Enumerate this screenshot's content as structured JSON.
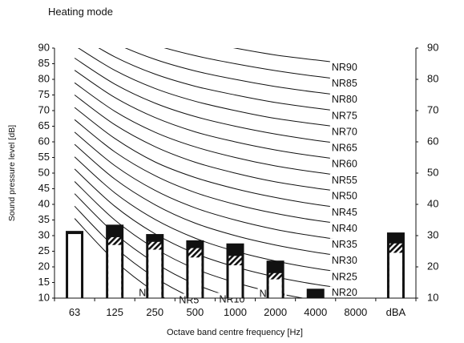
{
  "heading": "Heating mode",
  "chart_data": {
    "type": "bar",
    "title": "",
    "xlabel": "Octave band centre frequency [Hz]",
    "ylabel": "Sound pressure level [dB]",
    "ylim": [
      10,
      90
    ],
    "y_ticks": [
      "10",
      "15",
      "20",
      "25",
      "30",
      "35",
      "40",
      "45",
      "50",
      "55",
      "60",
      "65",
      "70",
      "75",
      "80",
      "85",
      "90"
    ],
    "y_ticks_right": [
      "10",
      "20",
      "30",
      "40",
      "50",
      "60",
      "70",
      "80",
      "90"
    ],
    "categories": [
      "63",
      "125",
      "250",
      "500",
      "1000",
      "2000",
      "4000",
      "8000",
      "dBA"
    ],
    "series": [
      {
        "values": [
          30.5,
          27.0,
          25.5,
          23.0,
          20.5,
          16.0,
          null,
          null,
          24.5
        ]
      },
      {
        "values": [
          null,
          29.5,
          28.0,
          26.0,
          23.5,
          18.0,
          null,
          null,
          27.5
        ]
      },
      {
        "values": [
          31.5,
          33.5,
          30.5,
          28.5,
          27.5,
          22.0,
          13.0,
          10.0,
          31.0
        ]
      }
    ],
    "nr_curves": [
      {
        "label": "NR0",
        "values": [
          35.5,
          22.0,
          12.0,
          4.8,
          0.0,
          -3.5,
          -6.1,
          -8.0
        ]
      },
      {
        "label": "NR5",
        "values": [
          39.4,
          26.3,
          16.6,
          9.7,
          5.0,
          1.6,
          -1.0,
          -2.8
        ]
      },
      {
        "label": "NR10",
        "values": [
          43.4,
          30.7,
          21.3,
          14.5,
          10.0,
          6.6,
          4.2,
          2.3
        ]
      },
      {
        "label": "NR15",
        "values": [
          47.3,
          35.0,
          25.9,
          19.4,
          15.0,
          11.7,
          9.3,
          7.4
        ]
      },
      {
        "label": "NR20",
        "values": [
          51.3,
          39.4,
          30.6,
          24.3,
          20.0,
          16.8,
          14.4,
          12.6
        ]
      },
      {
        "label": "NR25",
        "values": [
          55.2,
          43.7,
          35.2,
          29.2,
          25.0,
          21.9,
          19.5,
          17.7
        ]
      },
      {
        "label": "NR30",
        "values": [
          59.2,
          48.1,
          39.9,
          34.0,
          30.0,
          27.0,
          24.7,
          22.9
        ]
      },
      {
        "label": "NR35",
        "values": [
          63.1,
          52.4,
          44.5,
          38.9,
          35.0,
          32.0,
          29.8,
          28.0
        ]
      },
      {
        "label": "NR40",
        "values": [
          67.1,
          56.8,
          49.2,
          43.8,
          40.0,
          37.1,
          34.9,
          33.2
        ]
      },
      {
        "label": "NR45",
        "values": [
          71.0,
          61.1,
          53.6,
          48.6,
          45.0,
          42.2,
          40.0,
          38.3
        ]
      },
      {
        "label": "NR50",
        "values": [
          75.0,
          65.5,
          58.5,
          53.5,
          50.0,
          47.2,
          45.2,
          43.5
        ]
      },
      {
        "label": "NR55",
        "values": [
          78.9,
          69.8,
          63.1,
          58.4,
          55.0,
          52.3,
          50.3,
          48.6
        ]
      },
      {
        "label": "NR60",
        "values": [
          82.9,
          74.2,
          67.8,
          63.2,
          60.0,
          57.4,
          55.4,
          53.8
        ]
      },
      {
        "label": "NR65",
        "values": [
          86.8,
          78.5,
          72.4,
          68.1,
          65.0,
          62.5,
          60.5,
          58.9
        ]
      },
      {
        "label": "NR70",
        "values": [
          90.8,
          82.9,
          77.1,
          73.0,
          70.0,
          67.5,
          65.7,
          64.1
        ]
      },
      {
        "label": "NR75",
        "values": [
          94.7,
          87.2,
          81.7,
          77.8,
          75.0,
          72.6,
          70.8,
          69.2
        ]
      },
      {
        "label": "NR80",
        "values": [
          98.6,
          91.6,
          86.4,
          82.7,
          80.0,
          77.7,
          75.9,
          74.4
        ]
      },
      {
        "label": "NR85",
        "values": [
          102.6,
          95.9,
          91.0,
          87.6,
          85.0,
          82.8,
          81.0,
          79.5
        ]
      },
      {
        "label": "NR90",
        "values": [
          106.5,
          100.3,
          95.7,
          92.5,
          90.0,
          87.8,
          86.2,
          84.7
        ]
      }
    ],
    "grid": false,
    "legend": "none"
  }
}
